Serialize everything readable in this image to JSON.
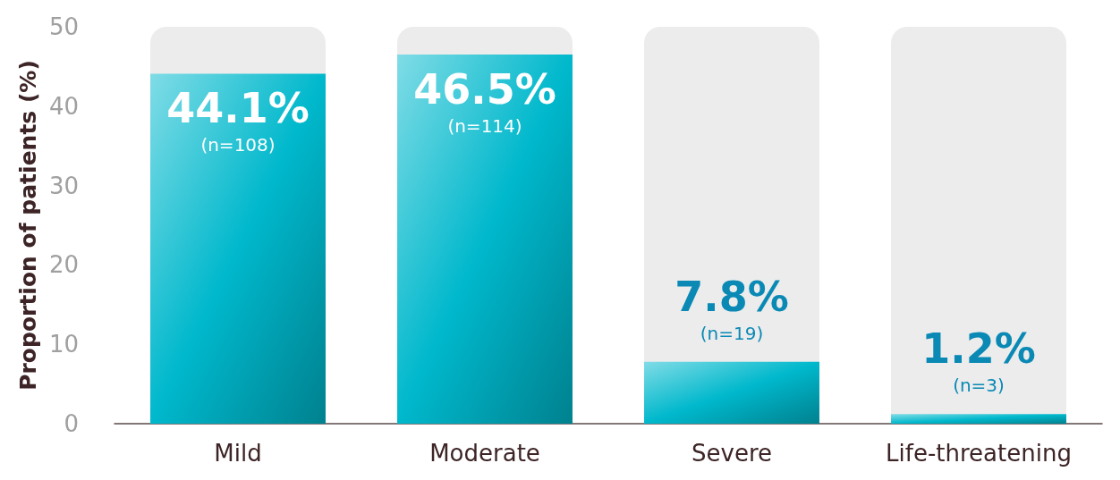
{
  "chart_data": {
    "type": "bar",
    "ylabel": "Proportion of patients (%)",
    "categories": [
      "Mild",
      "Moderate",
      "Severe",
      "Life-threatening"
    ],
    "values": [
      44.1,
      46.5,
      7.8,
      1.2
    ],
    "value_labels": [
      "44.1%\n(n=108)",
      "46.5%\n(n=114)",
      "7.8%\n(n=19)",
      "1.2%\n(n=3)"
    ],
    "color": "#00b8cc",
    "ylim": [
      0,
      50
    ],
    "yticks": [
      0,
      10,
      20,
      30,
      40,
      50
    ],
    "grid": false
  }
}
